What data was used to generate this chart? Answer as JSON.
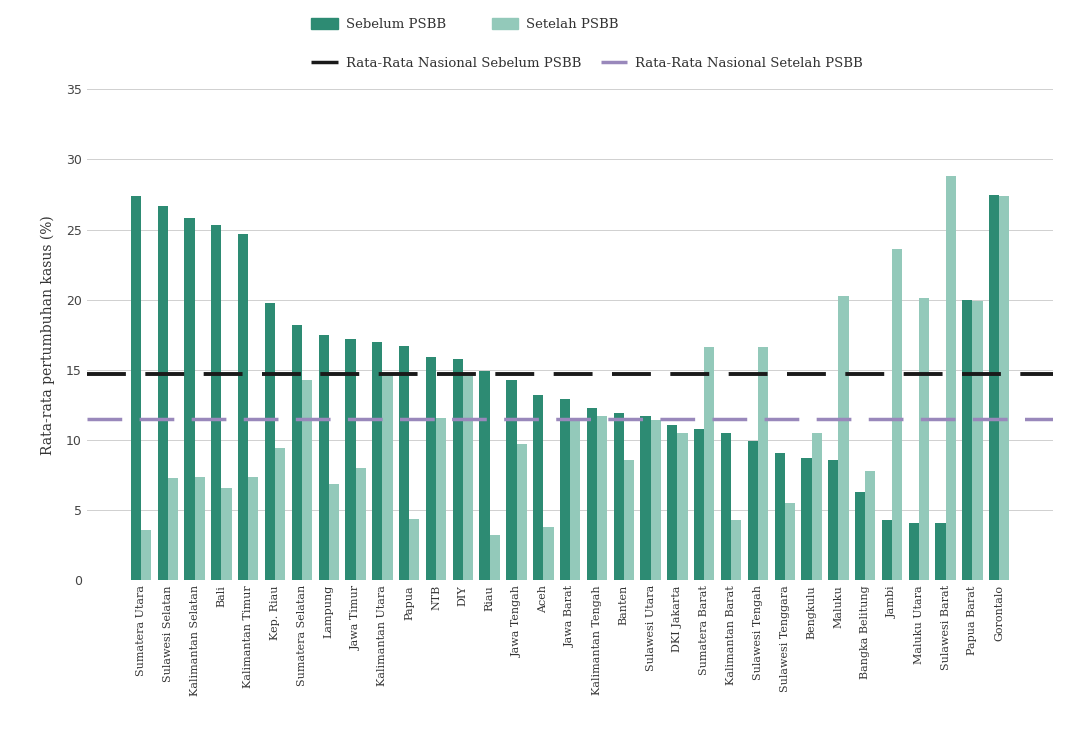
{
  "categories": [
    "Sumatera Utara",
    "Sulawesi Selatan",
    "Kalimantan Selatan",
    "Bali",
    "Kalimantan Timur",
    "Kep. Riau",
    "Sumatera Selatan",
    "Lampung",
    "Jawa Timur",
    "Kalimantan Utara",
    "Papua",
    "NTB",
    "DIY",
    "Riau",
    "Jawa Tengah",
    "Aceh",
    "Jawa Barat",
    "Kalimantan Tengah",
    "Banten",
    "Sulawesi Utara",
    "DKI Jakarta",
    "Sumatera Barat",
    "Kalimantan Barat",
    "Sulawesi Tengah",
    "Sulawesi Tenggara",
    "Bengkulu",
    "Maluku",
    "Bangka Belitung",
    "Jambi",
    "Maluku Utara",
    "Sulawesi Barat",
    "Papua Barat",
    "Gorontalo"
  ],
  "sebelum": [
    27.4,
    26.7,
    25.8,
    25.3,
    24.7,
    19.8,
    18.2,
    17.5,
    17.2,
    17.0,
    16.7,
    15.9,
    15.8,
    14.9,
    14.3,
    13.2,
    12.9,
    12.3,
    11.9,
    11.7,
    11.1,
    10.8,
    10.5,
    9.9,
    9.1,
    8.7,
    8.6,
    6.3,
    4.3,
    4.1,
    4.1,
    20.0,
    27.5
  ],
  "setelah": [
    3.6,
    7.3,
    7.4,
    6.6,
    7.4,
    9.4,
    14.3,
    6.9,
    8.0,
    14.8,
    4.4,
    11.6,
    14.6,
    3.2,
    9.7,
    3.8,
    11.5,
    11.7,
    8.6,
    11.4,
    10.5,
    16.6,
    4.3,
    16.6,
    5.5,
    10.5,
    20.3,
    7.8,
    23.6,
    20.1,
    28.8,
    19.9,
    27.4
  ],
  "national_sebelum": 14.7,
  "national_setelah": 11.5,
  "color_sebelum": "#2d8b73",
  "color_setelah": "#93c9ba",
  "color_national_sebelum": "#1a1a1a",
  "color_national_setelah": "#9988bb",
  "ylabel": "Rata-rata pertumbuhan kasus (%)",
  "ylim": [
    0,
    35
  ],
  "yticks": [
    0,
    5,
    10,
    15,
    20,
    25,
    30,
    35
  ],
  "legend_sebelum": "Sebelum PSBB",
  "legend_setelah": "Setelah PSBB",
  "legend_nat_sebelum": "Rata-Rata Nasional Sebelum PSBB",
  "legend_nat_setelah": "Rata-Rata Nasional Setelah PSBB",
  "background_color": "#ffffff"
}
